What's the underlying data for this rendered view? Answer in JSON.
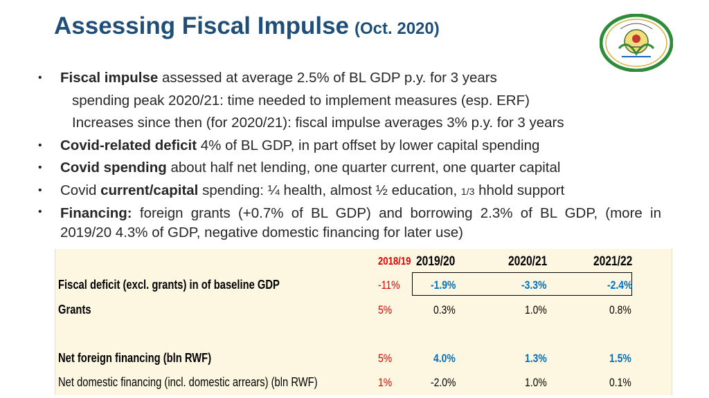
{
  "title": {
    "main": "Assessing Fiscal Impulse",
    "sub": "(Oct. 2020)"
  },
  "logo": {
    "icon": "rwanda-coat-of-arms-icon",
    "ring_color": "#2e8b3a"
  },
  "bullets": [
    {
      "bold": "Fiscal impulse",
      "text": " assessed at average 2.5% of BL GDP p.y. for 3 years"
    },
    {
      "cont": "spending peak 2020/21: time needed to implement measures (esp. ERF)"
    },
    {
      "cont": "Increases since then (for 2020/21): fiscal impulse averages 3% p.y. for 3 years"
    },
    {
      "bold": "Covid-related deficit",
      "text": " 4% of BL GDP, in part offset by lower capital spending"
    },
    {
      "bold": "Covid spending",
      "text": " about half net lending, one quarter current, one quarter capital"
    },
    {
      "pre": "Covid ",
      "bold": "current/capital",
      "text": " spending: ¼ health, almost ½ education, ",
      "small": "1/3",
      "tail": " hhold support"
    },
    {
      "bold": "Financing:",
      "text": " foreign grants (+0.7% of BL GDP) and borrowing 2.3% of BL GDP, (more in 2019/20 4.3% of GDP, negative domestic financing for later use)"
    }
  ],
  "table": {
    "columns": [
      "2018/19",
      "2019/20",
      "2020/21",
      "2021/22"
    ],
    "rows": [
      {
        "label": "Fiscal deficit (excl. grants) in of baseline GDP",
        "values": [
          "-11%",
          "-1.9%",
          "-3.3%",
          "-2.4%"
        ]
      },
      {
        "label": "Grants",
        "values": [
          "5%",
          "0.3%",
          "1.0%",
          "0.8%"
        ]
      },
      {
        "label": "Net foreign financing (bln RWF)",
        "values": [
          "5%",
          "4.0%",
          "1.3%",
          "1.5%"
        ]
      },
      {
        "label": "Net domestic financing (incl. domestic arrears) (bln RWF)",
        "values": [
          "1%",
          "-2.0%",
          "1.0%",
          "0.1%"
        ]
      }
    ]
  },
  "colors": {
    "title": "#1f4e79",
    "red": "#e00000",
    "blue": "#0070c0",
    "table_bg": "#fdf6e0"
  }
}
